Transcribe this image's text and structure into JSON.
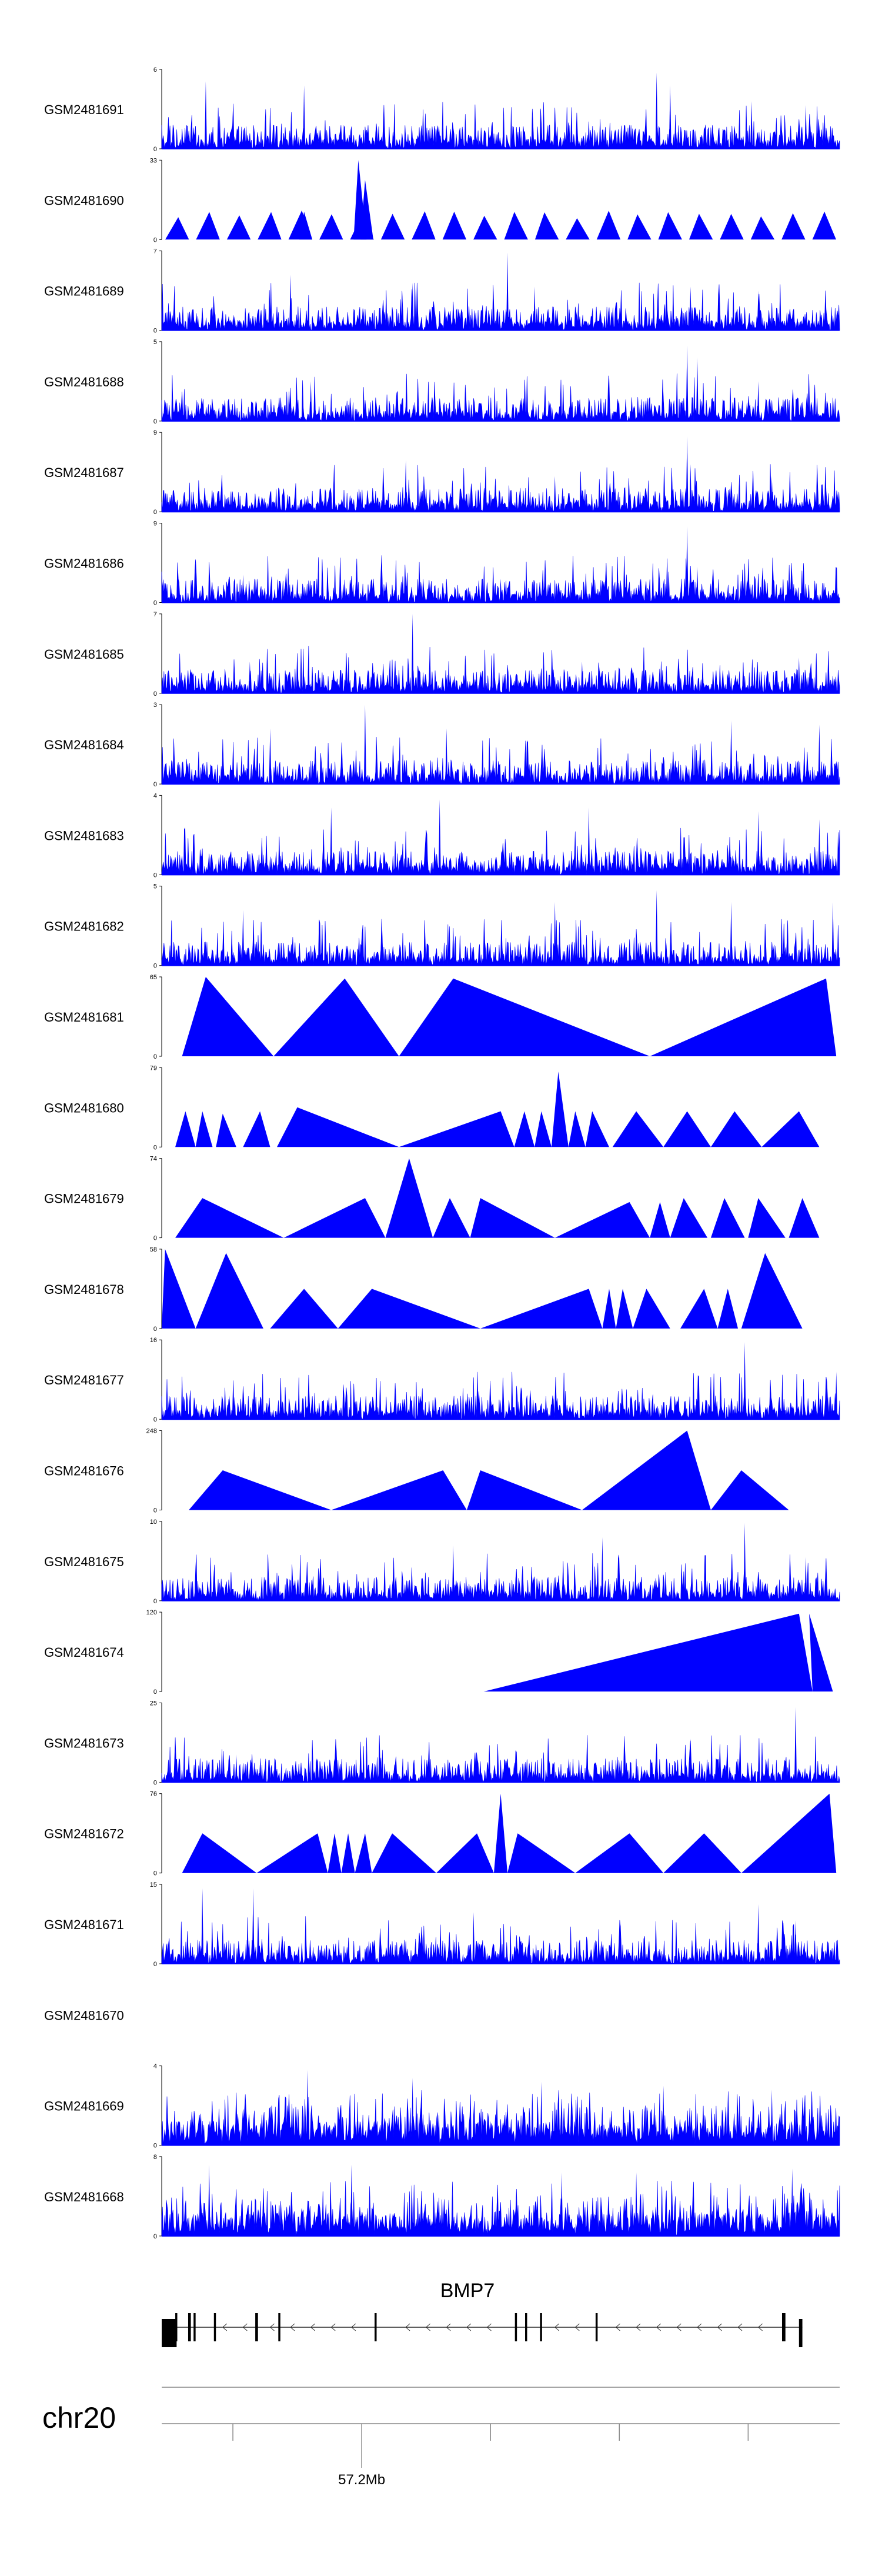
{
  "chart_data": {
    "type": "area",
    "fill_color": "#0000ff",
    "tracks": [
      {
        "name": "GSM2481691",
        "ymax": "6",
        "ymin": "0",
        "style": "dense",
        "peaks": [
          [
            0.065,
            0.85
          ],
          [
            0.21,
            0.8
          ],
          [
            0.73,
            0.96
          ],
          [
            0.75,
            0.8
          ],
          [
            0.87,
            0.6
          ],
          [
            0.95,
            0.55
          ]
        ]
      },
      {
        "name": "GSM2481690",
        "ymax": "33",
        "ymin": "0",
        "style": "triangles",
        "peaks": [
          [
            0.29,
            1.0
          ],
          [
            0.3,
            0.75
          ],
          [
            0.21,
            0.35
          ]
        ]
      },
      {
        "name": "GSM2481689",
        "ymax": "7",
        "ymin": "0",
        "style": "dense",
        "peaks": [
          [
            0.51,
            0.98
          ],
          [
            0.19,
            0.7
          ],
          [
            0.37,
            0.6
          ],
          [
            0.55,
            0.55
          ],
          [
            0.78,
            0.55
          ],
          [
            0.88,
            0.5
          ]
        ]
      },
      {
        "name": "GSM2481688",
        "ymax": "5",
        "ymin": "0",
        "style": "dense",
        "peaks": [
          [
            0.775,
            0.95
          ],
          [
            0.79,
            0.8
          ],
          [
            0.22,
            0.5
          ],
          [
            0.66,
            0.55
          ],
          [
            0.88,
            0.5
          ]
        ]
      },
      {
        "name": "GSM2481687",
        "ymax": "9",
        "ymin": "0",
        "style": "dense",
        "peaks": [
          [
            0.775,
            0.95
          ],
          [
            0.36,
            0.65
          ],
          [
            0.58,
            0.45
          ],
          [
            0.9,
            0.45
          ],
          [
            0.78,
            0.6
          ]
        ]
      },
      {
        "name": "GSM2481686",
        "ymax": "9",
        "ymin": "0",
        "style": "dense",
        "peaks": [
          [
            0.775,
            0.96
          ],
          [
            0.79,
            0.45
          ],
          [
            0.12,
            0.35
          ],
          [
            0.5,
            0.3
          ]
        ]
      },
      {
        "name": "GSM2481685",
        "ymax": "7",
        "ymin": "0",
        "style": "dense",
        "peaks": [
          [
            0.37,
            1.0
          ],
          [
            0.13,
            0.4
          ],
          [
            0.62,
            0.4
          ],
          [
            0.94,
            0.45
          ]
        ]
      },
      {
        "name": "GSM2481684",
        "ymax": "3",
        "ymin": "0",
        "style": "dense",
        "peaks": [
          [
            0.3,
            1.0
          ],
          [
            0.42,
            0.7
          ],
          [
            0.16,
            0.7
          ],
          [
            0.84,
            0.8
          ],
          [
            0.97,
            0.75
          ]
        ]
      },
      {
        "name": "GSM2481683",
        "ymax": "4",
        "ymin": "0",
        "style": "dense",
        "peaks": [
          [
            0.41,
            0.95
          ],
          [
            0.25,
            0.85
          ],
          [
            0.63,
            0.85
          ],
          [
            0.88,
            0.8
          ],
          [
            0.97,
            0.7
          ]
        ]
      },
      {
        "name": "GSM2481682",
        "ymax": "5",
        "ymin": "0",
        "style": "dense",
        "peaks": [
          [
            0.73,
            0.95
          ],
          [
            0.58,
            0.8
          ],
          [
            0.84,
            0.8
          ],
          [
            0.12,
            0.7
          ],
          [
            0.99,
            0.8
          ]
        ]
      },
      {
        "name": "GSM2481681",
        "ymax": "65",
        "ymin": "0",
        "style": "bigtri",
        "tris": [
          [
            0.03,
            0.165,
            0.065,
            1.0
          ],
          [
            0.165,
            0.35,
            0.27,
            0.98
          ],
          [
            0.35,
            0.72,
            0.43,
            0.98
          ],
          [
            0.72,
            0.995,
            0.98,
            0.98
          ]
        ]
      },
      {
        "name": "GSM2481680",
        "ymax": "79",
        "ymin": "0",
        "style": "bigtri",
        "tris": [
          [
            0.02,
            0.05,
            0.035,
            0.45
          ],
          [
            0.05,
            0.075,
            0.06,
            0.45
          ],
          [
            0.08,
            0.11,
            0.09,
            0.42
          ],
          [
            0.12,
            0.16,
            0.145,
            0.45
          ],
          [
            0.17,
            0.35,
            0.2,
            0.5
          ],
          [
            0.35,
            0.52,
            0.5,
            0.45
          ],
          [
            0.52,
            0.55,
            0.535,
            0.45
          ],
          [
            0.55,
            0.575,
            0.56,
            0.45
          ],
          [
            0.575,
            0.6,
            0.585,
            0.95
          ],
          [
            0.6,
            0.625,
            0.61,
            0.45
          ],
          [
            0.625,
            0.66,
            0.635,
            0.45
          ],
          [
            0.665,
            0.74,
            0.7,
            0.45
          ],
          [
            0.74,
            0.81,
            0.775,
            0.45
          ],
          [
            0.81,
            0.885,
            0.845,
            0.45
          ],
          [
            0.885,
            0.97,
            0.94,
            0.45
          ]
        ]
      },
      {
        "name": "GSM2481679",
        "ymax": "74",
        "ymin": "0",
        "style": "bigtri",
        "tris": [
          [
            0.02,
            0.18,
            0.06,
            0.5
          ],
          [
            0.18,
            0.33,
            0.3,
            0.5
          ],
          [
            0.33,
            0.4,
            0.365,
            1.0
          ],
          [
            0.4,
            0.455,
            0.425,
            0.5
          ],
          [
            0.455,
            0.58,
            0.47,
            0.5
          ],
          [
            0.58,
            0.72,
            0.69,
            0.45
          ],
          [
            0.72,
            0.75,
            0.735,
            0.45
          ],
          [
            0.75,
            0.805,
            0.77,
            0.5
          ],
          [
            0.81,
            0.86,
            0.83,
            0.5
          ],
          [
            0.865,
            0.92,
            0.88,
            0.5
          ],
          [
            0.925,
            0.97,
            0.945,
            0.5
          ]
        ]
      },
      {
        "name": "GSM2481678",
        "ymax": "58",
        "ymin": "0",
        "style": "bigtri",
        "tris": [
          [
            0.0,
            0.05,
            0.005,
            1.0
          ],
          [
            0.05,
            0.15,
            0.095,
            0.95
          ],
          [
            0.16,
            0.26,
            0.21,
            0.5
          ],
          [
            0.26,
            0.47,
            0.31,
            0.5
          ],
          [
            0.47,
            0.65,
            0.63,
            0.5
          ],
          [
            0.65,
            0.67,
            0.66,
            0.5
          ],
          [
            0.67,
            0.695,
            0.68,
            0.5
          ],
          [
            0.695,
            0.75,
            0.715,
            0.5
          ],
          [
            0.765,
            0.82,
            0.8,
            0.5
          ],
          [
            0.82,
            0.85,
            0.835,
            0.5
          ],
          [
            0.855,
            0.945,
            0.89,
            0.95
          ]
        ]
      },
      {
        "name": "GSM2481677",
        "ymax": "16",
        "ymin": "0",
        "style": "dense",
        "peaks": [
          [
            0.86,
            0.97
          ],
          [
            0.995,
            0.6
          ],
          [
            0.1,
            0.3
          ],
          [
            0.5,
            0.25
          ],
          [
            0.72,
            0.25
          ]
        ]
      },
      {
        "name": "GSM2481676",
        "ymax": "248",
        "ymin": "0",
        "style": "bigtri",
        "tris": [
          [
            0.04,
            0.25,
            0.09,
            0.5
          ],
          [
            0.25,
            0.45,
            0.415,
            0.5
          ],
          [
            0.45,
            0.62,
            0.47,
            0.5
          ],
          [
            0.62,
            0.81,
            0.775,
            1.0
          ],
          [
            0.81,
            0.925,
            0.855,
            0.5
          ]
        ]
      },
      {
        "name": "GSM2481675",
        "ymax": "10",
        "ymin": "0",
        "style": "dense",
        "peaks": [
          [
            0.86,
            0.98
          ],
          [
            0.65,
            0.8
          ],
          [
            0.43,
            0.7
          ],
          [
            0.95,
            0.55
          ]
        ]
      },
      {
        "name": "GSM2481674",
        "ymax": "120",
        "ymin": "0",
        "style": "bigtri",
        "tris": [
          [
            0.475,
            0.96,
            0.94,
            0.98
          ],
          [
            0.96,
            0.99,
            0.955,
            0.98
          ]
        ]
      },
      {
        "name": "GSM2481673",
        "ymax": "25",
        "ymin": "0",
        "style": "dense",
        "peaks": [
          [
            0.935,
            0.95
          ],
          [
            0.78,
            0.55
          ],
          [
            0.11,
            0.35
          ],
          [
            0.6,
            0.3
          ]
        ]
      },
      {
        "name": "GSM2481672",
        "ymax": "76",
        "ymin": "0",
        "style": "bigtri",
        "tris": [
          [
            0.03,
            0.14,
            0.06,
            0.5
          ],
          [
            0.14,
            0.245,
            0.23,
            0.5
          ],
          [
            0.245,
            0.265,
            0.255,
            0.5
          ],
          [
            0.265,
            0.285,
            0.275,
            0.5
          ],
          [
            0.285,
            0.31,
            0.3,
            0.5
          ],
          [
            0.31,
            0.405,
            0.34,
            0.5
          ],
          [
            0.405,
            0.49,
            0.465,
            0.5
          ],
          [
            0.49,
            0.51,
            0.5,
            1.0
          ],
          [
            0.51,
            0.61,
            0.525,
            0.5
          ],
          [
            0.61,
            0.74,
            0.69,
            0.5
          ],
          [
            0.74,
            0.855,
            0.8,
            0.5
          ],
          [
            0.855,
            0.995,
            0.985,
            1.0
          ]
        ]
      },
      {
        "name": "GSM2481671",
        "ymax": "15",
        "ymin": "0",
        "style": "dense",
        "peaks": [
          [
            0.06,
            0.95
          ],
          [
            0.135,
            0.95
          ],
          [
            0.46,
            0.65
          ],
          [
            0.88,
            0.75
          ],
          [
            0.935,
            0.55
          ]
        ]
      },
      {
        "name": "GSM2481670",
        "ymax": "",
        "ymin": "",
        "style": "empty"
      },
      {
        "name": "GSM2481669",
        "ymax": "4",
        "ymin": "0",
        "style": "dense_heavy",
        "peaks": [
          [
            0.215,
            0.95
          ],
          [
            0.37,
            0.85
          ],
          [
            0.56,
            0.8
          ],
          [
            0.74,
            0.75
          ],
          [
            0.9,
            0.7
          ]
        ]
      },
      {
        "name": "GSM2481668",
        "ymax": "8",
        "ymin": "0",
        "style": "dense_heavy",
        "peaks": [
          [
            0.07,
            0.9
          ],
          [
            0.28,
            0.9
          ],
          [
            0.59,
            0.8
          ],
          [
            0.7,
            0.8
          ],
          [
            0.93,
            0.85
          ]
        ]
      }
    ],
    "gene": {
      "name": "BMP7",
      "strand": "-",
      "exons": [
        [
          0.0,
          0.022
        ],
        [
          0.02,
          0.023
        ],
        [
          0.039,
          0.043
        ],
        [
          0.047,
          0.05
        ],
        [
          0.077,
          0.08
        ],
        [
          0.138,
          0.142
        ],
        [
          0.172,
          0.175
        ],
        [
          0.314,
          0.317
        ],
        [
          0.521,
          0.524
        ],
        [
          0.536,
          0.539
        ],
        [
          0.558,
          0.561
        ],
        [
          0.64,
          0.643
        ],
        [
          0.94,
          0.945
        ],
        [
          0.915,
          0.92
        ]
      ],
      "arrows": [
        0.09,
        0.12,
        0.16,
        0.19,
        0.22,
        0.25,
        0.28,
        0.36,
        0.39,
        0.42,
        0.45,
        0.48,
        0.58,
        0.61,
        0.67,
        0.7,
        0.73,
        0.76,
        0.79,
        0.82,
        0.85,
        0.88
      ]
    },
    "axis": {
      "chrom": "chr20",
      "tick_label": "57.2Mb",
      "ticks": [
        0.105,
        0.295,
        0.485,
        0.675,
        0.865
      ],
      "labeled_tick": 1
    }
  }
}
